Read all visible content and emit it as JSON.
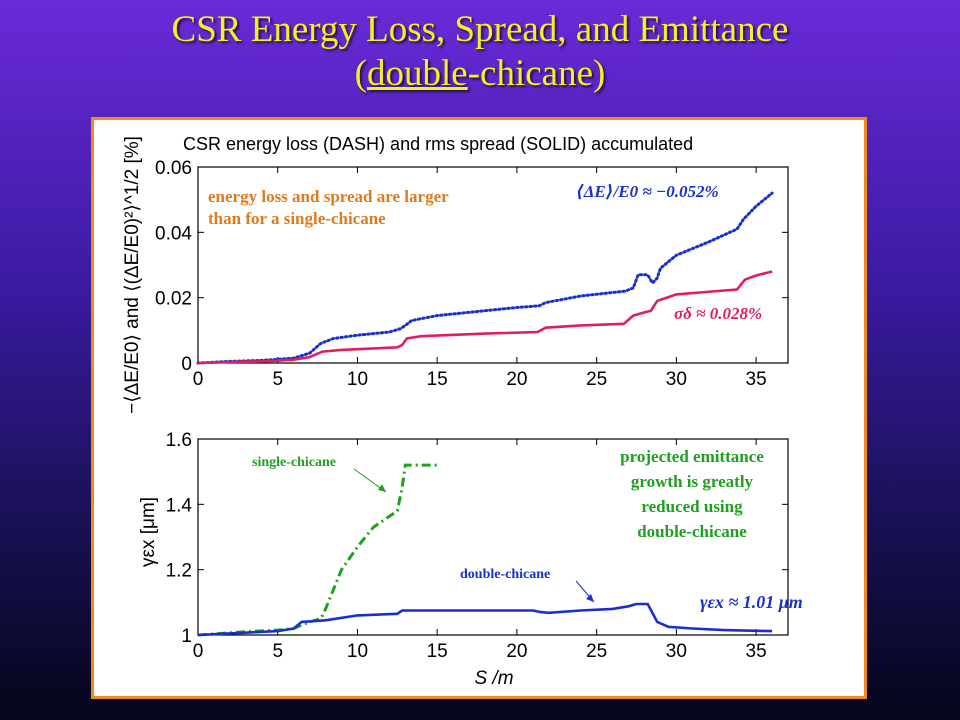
{
  "slide": {
    "title_line1": "CSR Energy Loss, Spread, and Emittance",
    "title_line2_pre": "(",
    "title_line2_u": "double",
    "title_line2_post": "-chicane)"
  },
  "colors": {
    "accent_title": "#f5f020",
    "panel_border": "#f08a1a",
    "blue": "#1a2fd0",
    "magenta": "#e0205a",
    "green": "#20a020",
    "orange_text": "#e07a20"
  },
  "chart_data": [
    {
      "type": "line",
      "title": "CSR energy loss (DASH) and rms spread (SOLID) accumulated",
      "xlabel": "",
      "ylabel": "−⟨ΔE/E0⟩ and ⟨(ΔE/E0)²⟩^1/2 [%]",
      "xlim": [
        0,
        37
      ],
      "ylim": [
        0,
        0.06
      ],
      "xticks": [
        0,
        5,
        10,
        15,
        20,
        25,
        30,
        35
      ],
      "yticks": [
        0,
        0.02,
        0.04,
        0.06
      ],
      "ytick_labels": [
        "0",
        "0.02",
        "0.04",
        "0.06"
      ],
      "series": [
        {
          "label": "⟨ΔE⟩/E0 ≈ −0.052%",
          "color": "#1a2fd0",
          "style": "dot",
          "points": [
            [
              0,
              0
            ],
            [
              2,
              0.0005
            ],
            [
              4,
              0.0008
            ],
            [
              6,
              0.0015
            ],
            [
              7,
              0.003
            ],
            [
              7.7,
              0.006
            ],
            [
              8.5,
              0.0075
            ],
            [
              10,
              0.0085
            ],
            [
              12,
              0.0095
            ],
            [
              12.7,
              0.0105
            ],
            [
              13,
              0.0115
            ],
            [
              13.4,
              0.013
            ],
            [
              15,
              0.0145
            ],
            [
              18,
              0.016
            ],
            [
              20,
              0.017
            ],
            [
              21.4,
              0.0175
            ],
            [
              21.8,
              0.0185
            ],
            [
              24,
              0.0205
            ],
            [
              26.8,
              0.022
            ],
            [
              27.3,
              0.023
            ],
            [
              27.6,
              0.027
            ],
            [
              28.2,
              0.027
            ],
            [
              28.5,
              0.0245
            ],
            [
              28.8,
              0.026
            ],
            [
              29,
              0.029
            ],
            [
              30,
              0.033
            ],
            [
              32,
              0.037
            ],
            [
              33.8,
              0.041
            ],
            [
              34.2,
              0.044
            ],
            [
              35,
              0.048
            ],
            [
              36,
              0.052
            ]
          ]
        },
        {
          "label": "σδ ≈ 0.028%",
          "color": "#e0205a",
          "style": "solid",
          "points": [
            [
              0,
              0
            ],
            [
              2,
              0.0003
            ],
            [
              4,
              0.0005
            ],
            [
              6,
              0.001
            ],
            [
              7,
              0.0018
            ],
            [
              7.8,
              0.0035
            ],
            [
              9,
              0.004
            ],
            [
              12.5,
              0.0048
            ],
            [
              12.8,
              0.0055
            ],
            [
              13.1,
              0.0075
            ],
            [
              14,
              0.0082
            ],
            [
              18,
              0.009
            ],
            [
              21.3,
              0.0095
            ],
            [
              21.8,
              0.0108
            ],
            [
              24,
              0.0115
            ],
            [
              26.7,
              0.012
            ],
            [
              27.3,
              0.0145
            ],
            [
              28,
              0.0155
            ],
            [
              28.4,
              0.016
            ],
            [
              28.8,
              0.019
            ],
            [
              30,
              0.021
            ],
            [
              33,
              0.0222
            ],
            [
              33.8,
              0.0225
            ],
            [
              34.3,
              0.0255
            ],
            [
              35,
              0.0268
            ],
            [
              36,
              0.028
            ]
          ]
        }
      ],
      "annotations": [
        {
          "text": "energy loss and spread are larger",
          "color": "#e07a20"
        },
        {
          "text": "than for a single-chicane",
          "color": "#e07a20"
        }
      ]
    },
    {
      "type": "line",
      "title": "",
      "xlabel": "S /m",
      "ylabel": "γεx [μm]",
      "xlim": [
        0,
        37
      ],
      "ylim": [
        1,
        1.6
      ],
      "xticks": [
        0,
        5,
        10,
        15,
        20,
        25,
        30,
        35
      ],
      "yticks": [
        1,
        1.2,
        1.4,
        1.6
      ],
      "ytick_labels": [
        "1",
        "1.2",
        "1.4",
        "1.6"
      ],
      "series": [
        {
          "name": "single-chicane",
          "color": "#20a020",
          "style": "dashdot",
          "points": [
            [
              0,
              1
            ],
            [
              3,
              1.01
            ],
            [
              5,
              1.015
            ],
            [
              6,
              1.02
            ],
            [
              7,
              1.04
            ],
            [
              7.7,
              1.05
            ],
            [
              8,
              1.08
            ],
            [
              9,
              1.2
            ],
            [
              10,
              1.27
            ],
            [
              11,
              1.33
            ],
            [
              12.5,
              1.38
            ],
            [
              12.8,
              1.45
            ],
            [
              13,
              1.52
            ],
            [
              13.5,
              1.52
            ],
            [
              15,
              1.52
            ]
          ]
        },
        {
          "name": "double-chicane",
          "color": "#1a2fd0",
          "style": "solid",
          "points": [
            [
              0,
              1
            ],
            [
              2,
              1.005
            ],
            [
              5,
              1.012
            ],
            [
              6,
              1.02
            ],
            [
              6.5,
              1.04
            ],
            [
              8,
              1.045
            ],
            [
              10,
              1.06
            ],
            [
              12.5,
              1.065
            ],
            [
              12.8,
              1.075
            ],
            [
              15,
              1.075
            ],
            [
              18,
              1.075
            ],
            [
              21,
              1.075
            ],
            [
              21.5,
              1.07
            ],
            [
              22,
              1.068
            ],
            [
              24,
              1.075
            ],
            [
              26,
              1.08
            ],
            [
              27,
              1.088
            ],
            [
              27.5,
              1.095
            ],
            [
              28.2,
              1.095
            ],
            [
              28.8,
              1.04
            ],
            [
              29.5,
              1.025
            ],
            [
              31,
              1.02
            ],
            [
              33,
              1.015
            ],
            [
              36,
              1.012
            ]
          ]
        }
      ],
      "annotations": [
        {
          "text": "projected emittance",
          "color": "#20a020"
        },
        {
          "text": "growth is greatly",
          "color": "#20a020"
        },
        {
          "text": "reduced using",
          "color": "#20a020"
        },
        {
          "text": "double-chicane",
          "color": "#20a020"
        },
        {
          "text": "γεx ≈ 1.01 μm",
          "color": "#1a2fd0"
        }
      ]
    }
  ]
}
